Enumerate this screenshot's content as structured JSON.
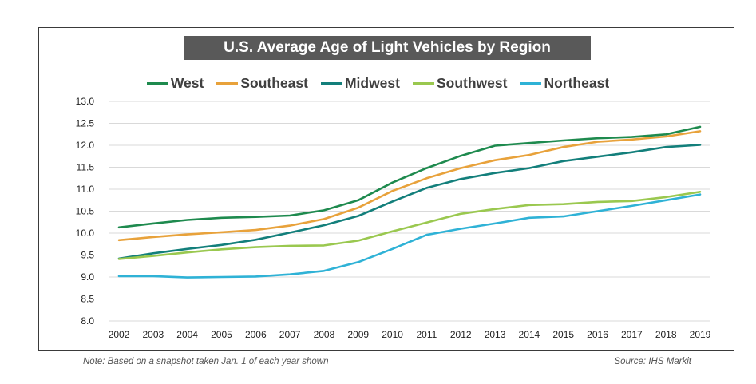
{
  "chart_data": {
    "type": "line",
    "title": "U.S. Average Age of Light Vehicles by Region",
    "x": [
      "2002",
      "2003",
      "2004",
      "2005",
      "2006",
      "2007",
      "2008",
      "2009",
      "2010",
      "2011",
      "2012",
      "2013",
      "2014",
      "2015",
      "2016",
      "2017",
      "2018",
      "2019"
    ],
    "yticks": [
      "13.0",
      "12.5",
      "12.0",
      "11.5",
      "11.0",
      "10.5",
      "10.0",
      "9.5",
      "9.0",
      "8.5",
      "8.0"
    ],
    "ylim": [
      8.0,
      13.0
    ],
    "grid": true,
    "legend_position": "top",
    "series": [
      {
        "name": "West",
        "color": "#1e8a4e",
        "values": [
          10.13,
          10.22,
          10.3,
          10.35,
          10.37,
          10.4,
          10.52,
          10.75,
          11.15,
          11.48,
          11.76,
          11.99,
          12.05,
          12.11,
          12.16,
          12.19,
          12.25,
          12.42
        ]
      },
      {
        "name": "Southeast",
        "color": "#e8a23b",
        "values": [
          9.84,
          9.91,
          9.97,
          10.02,
          10.07,
          10.17,
          10.32,
          10.58,
          10.96,
          11.25,
          11.48,
          11.66,
          11.78,
          11.96,
          12.08,
          12.13,
          12.2,
          12.32
        ]
      },
      {
        "name": "Midwest",
        "color": "#137f7b",
        "values": [
          9.42,
          9.54,
          9.64,
          9.73,
          9.85,
          10.01,
          10.18,
          10.39,
          10.72,
          11.03,
          11.23,
          11.37,
          11.48,
          11.64,
          11.74,
          11.84,
          11.96,
          12.01
        ]
      },
      {
        "name": "Southwest",
        "color": "#9ac84f",
        "values": [
          9.41,
          9.48,
          9.56,
          9.63,
          9.68,
          9.71,
          9.72,
          9.83,
          10.04,
          10.24,
          10.44,
          10.55,
          10.64,
          10.66,
          10.71,
          10.73,
          10.82,
          10.94
        ]
      },
      {
        "name": "Northeast",
        "color": "#2fb2d6",
        "values": [
          9.02,
          9.02,
          8.99,
          9.0,
          9.01,
          9.06,
          9.14,
          9.34,
          9.64,
          9.96,
          10.1,
          10.22,
          10.35,
          10.38,
          10.5,
          10.62,
          10.75,
          10.88
        ]
      }
    ]
  },
  "footer": {
    "note": "Note: Based on a snapshot taken Jan. 1 of each year shown",
    "source": "Source: IHS Markit"
  }
}
